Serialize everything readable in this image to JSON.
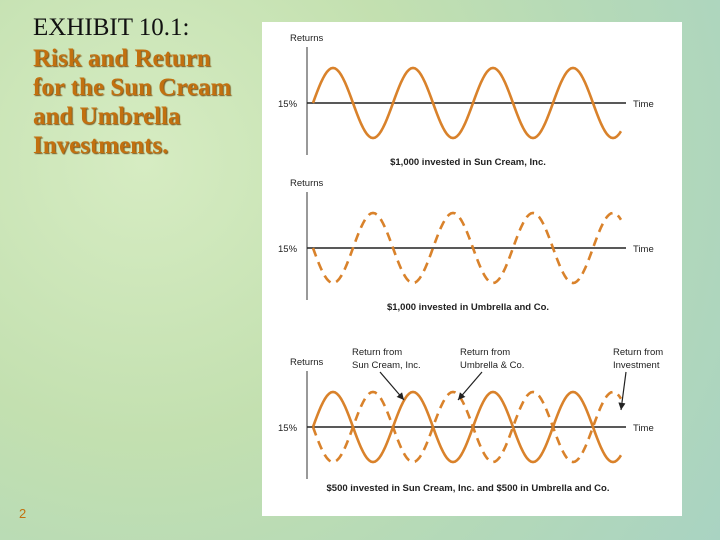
{
  "slide": {
    "exhibit": "EXHIBIT 10.1:",
    "title_lines": [
      "Risk and Return",
      "for the Sun Cream",
      "and Umbrella",
      "Investments."
    ],
    "page_number": "2"
  },
  "panels": [
    {
      "y_label": "Returns",
      "level_label": "15%",
      "x_label": "Time",
      "caption": "$1,000 invested in Sun Cream, Inc."
    },
    {
      "y_label": "Returns",
      "level_label": "15%",
      "x_label": "Time",
      "caption": "$1,000 invested in Umbrella and Co."
    },
    {
      "y_label": "Returns",
      "level_label": "15%",
      "x_label": "Time",
      "caption": "$500 invested in Sun Cream, Inc. and $500 in Umbrella and Co.",
      "annotations": [
        [
          "Return from",
          "Sun Cream, Inc."
        ],
        [
          "Return from",
          "Umbrella & Co."
        ],
        [
          "Return from",
          "Investment"
        ]
      ]
    }
  ]
}
